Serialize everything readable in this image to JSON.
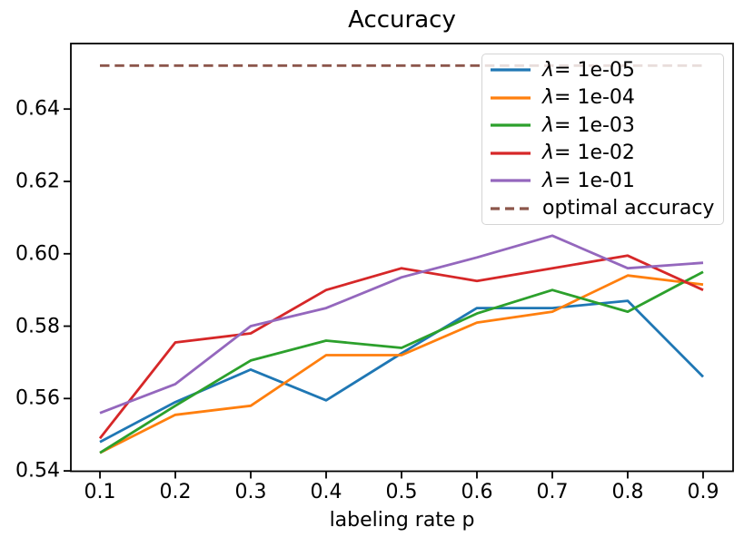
{
  "chart_data": {
    "type": "line",
    "title": "Accuracy",
    "xlabel": "labeling rate p",
    "ylabel": "",
    "grid": false,
    "legend_position": "upper right",
    "xlim": [
      0.0614,
      0.9398
    ],
    "ylim": [
      0.5399,
      0.6581
    ],
    "xticks": [
      0.1,
      0.2,
      0.3,
      0.4,
      0.5,
      0.6,
      0.7,
      0.8,
      0.9
    ],
    "xtick_labels": [
      "0.1",
      "0.2",
      "0.3",
      "0.4",
      "0.5",
      "0.6",
      "0.7",
      "0.8",
      "0.9"
    ],
    "yticks": [
      0.54,
      0.56,
      0.58,
      0.6,
      0.62,
      0.64
    ],
    "ytick_labels": [
      "0.54",
      "0.56",
      "0.58",
      "0.60",
      "0.62",
      "0.64"
    ],
    "x": [
      0.1,
      0.2,
      0.3,
      0.4,
      0.5,
      0.6,
      0.7,
      0.8,
      0.9
    ],
    "series": [
      {
        "name": "λ= 1e-05",
        "color": "#1f77b4",
        "style": "solid",
        "values": [
          0.548,
          0.559,
          0.568,
          0.5595,
          0.5725,
          0.585,
          0.585,
          0.587,
          0.566
        ]
      },
      {
        "name": "λ= 1e-04",
        "color": "#ff7f0e",
        "style": "solid",
        "values": [
          0.545,
          0.5555,
          0.558,
          0.572,
          0.572,
          0.581,
          0.584,
          0.594,
          0.5915
        ]
      },
      {
        "name": "λ= 1e-03",
        "color": "#2ca02c",
        "style": "solid",
        "values": [
          0.545,
          0.558,
          0.5705,
          0.576,
          0.574,
          0.5835,
          0.59,
          0.584,
          0.595
        ]
      },
      {
        "name": "λ= 1e-02",
        "color": "#d62728",
        "style": "solid",
        "values": [
          0.549,
          0.5755,
          0.578,
          0.59,
          0.596,
          0.5925,
          0.596,
          0.5995,
          0.59
        ]
      },
      {
        "name": "λ= 1e-01",
        "color": "#9467bd",
        "style": "solid",
        "values": [
          0.556,
          0.564,
          0.58,
          0.585,
          0.5935,
          0.599,
          0.605,
          0.596,
          0.5975
        ]
      },
      {
        "name": "optimal accuracy",
        "color": "#8c564b",
        "style": "dashed",
        "values": [
          0.652,
          0.652,
          0.652,
          0.652,
          0.652,
          0.652,
          0.652,
          0.652,
          0.652
        ]
      }
    ]
  }
}
